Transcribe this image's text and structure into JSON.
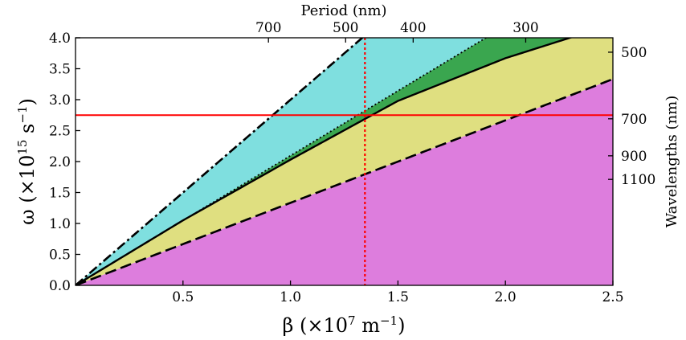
{
  "chart_data": {
    "type": "area",
    "title": "",
    "x": {
      "label_html": "β (×10<tspan baseline-shift=\"super\" font-size=\"15\">7</tspan> m<tspan baseline-shift=\"super\" font-size=\"15\">−1</tspan>)",
      "lim": [
        0.0,
        2.5
      ],
      "ticks": [
        0.5,
        1.0,
        1.5,
        2.0,
        2.5
      ],
      "tick_labels": [
        "0.5",
        "1.0",
        "1.5",
        "2.0",
        "2.5"
      ]
    },
    "y": {
      "label_html": "ω (×10<tspan baseline-shift=\"super\" font-size=\"15\">15</tspan> s<tspan baseline-shift=\"super\" font-size=\"15\">−1</tspan>)",
      "lim": [
        0.0,
        4.0
      ],
      "ticks": [
        0.0,
        0.5,
        1.0,
        1.5,
        2.0,
        2.5,
        3.0,
        3.5,
        4.0
      ],
      "tick_labels": [
        "0.0",
        "0.5",
        "1.0",
        "1.5",
        "2.0",
        "2.5",
        "3.0",
        "3.5",
        "4.0"
      ]
    },
    "top_axis": {
      "label": "Period (nm)",
      "ticks_beta": [
        0.8976,
        1.2566,
        1.5708,
        2.0944
      ],
      "tick_labels": [
        "700",
        "500",
        "400",
        "300"
      ]
    },
    "right_axis": {
      "label": "Wavelengths (nm)",
      "ticks_omega": [
        3.767,
        2.691,
        2.093,
        1.712
      ],
      "tick_labels": [
        "500",
        "700",
        "900",
        "1100"
      ]
    },
    "curves": {
      "light_line_air": {
        "style": "dash-dot",
        "slope": 2.998
      },
      "light_line_upper": {
        "style": "dotted",
        "slope": 2.095
      },
      "light_line_lower": {
        "style": "dashed",
        "slope": 1.333
      },
      "mode": {
        "style": "solid",
        "beta": [
          0.0,
          0.5,
          1.0,
          1.5,
          2.0,
          2.3
        ],
        "omega": [
          0.0,
          1.05,
          2.03,
          2.98,
          3.67,
          4.0
        ]
      }
    },
    "regions": [
      {
        "name": "",
        "color": "#dd7ddd"
      },
      {
        "name": "",
        "color": "#dfdf80"
      },
      {
        "name": "",
        "color": "#7fdfdf"
      },
      {
        "name": "",
        "color": "#3aa64f"
      }
    ],
    "markers": {
      "hline_omega": 2.75,
      "hline_color": "#ff0000",
      "vline_beta": 1.3464,
      "vline_color": "#ff0000"
    }
  }
}
